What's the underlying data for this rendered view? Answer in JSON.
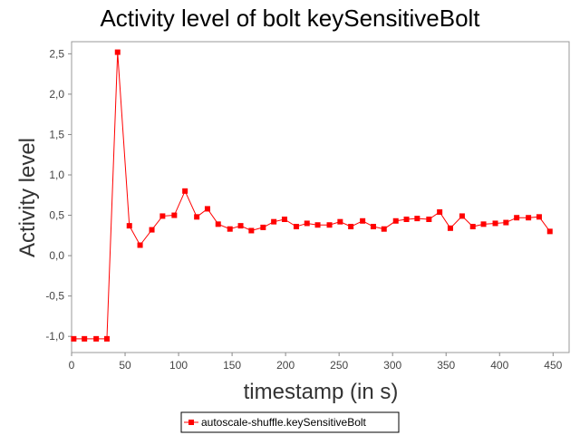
{
  "chart_data": {
    "type": "line",
    "title": "Activity level of bolt keySensitiveBolt",
    "xlabel": "timestamp (in s)",
    "ylabel": "Activity level",
    "xlim": [
      0,
      465
    ],
    "ylim": [
      -1.2,
      2.65
    ],
    "x_ticks": [
      0,
      50,
      100,
      150,
      200,
      250,
      300,
      350,
      400,
      450
    ],
    "x_tick_labels": [
      "0",
      "50",
      "100",
      "150",
      "200",
      "250",
      "300",
      "350",
      "400",
      "450"
    ],
    "y_ticks": [
      -1.0,
      -0.5,
      0.0,
      0.5,
      1.0,
      1.5,
      2.0,
      2.5
    ],
    "y_tick_labels": [
      "-1,0",
      "-0,5",
      "0,0",
      "0,5",
      "1,0",
      "1,5",
      "2,0",
      "2,5"
    ],
    "grid": false,
    "legend_position": "bottom-center",
    "series": [
      {
        "name": "autoscale-shuffle.keySensitiveBolt",
        "color": "#ff0000",
        "marker": "square",
        "x": [
          2,
          12,
          23,
          33,
          43,
          54,
          64,
          75,
          85,
          96,
          106,
          117,
          127,
          137,
          148,
          158,
          168,
          179,
          189,
          199,
          210,
          220,
          230,
          241,
          251,
          261,
          272,
          282,
          292,
          303,
          313,
          323,
          334,
          344,
          354,
          365,
          375,
          385,
          396,
          406,
          416,
          427,
          437,
          447
        ],
        "y": [
          -1.03,
          -1.03,
          -1.03,
          -1.03,
          2.52,
          0.37,
          0.13,
          0.32,
          0.49,
          0.5,
          0.8,
          0.48,
          0.58,
          0.39,
          0.33,
          0.37,
          0.31,
          0.35,
          0.42,
          0.45,
          0.36,
          0.4,
          0.38,
          0.38,
          0.42,
          0.36,
          0.43,
          0.36,
          0.33,
          0.43,
          0.45,
          0.46,
          0.45,
          0.54,
          0.34,
          0.49,
          0.36,
          0.39,
          0.4,
          0.41,
          0.47,
          0.47,
          0.48,
          0.3
        ]
      }
    ]
  }
}
